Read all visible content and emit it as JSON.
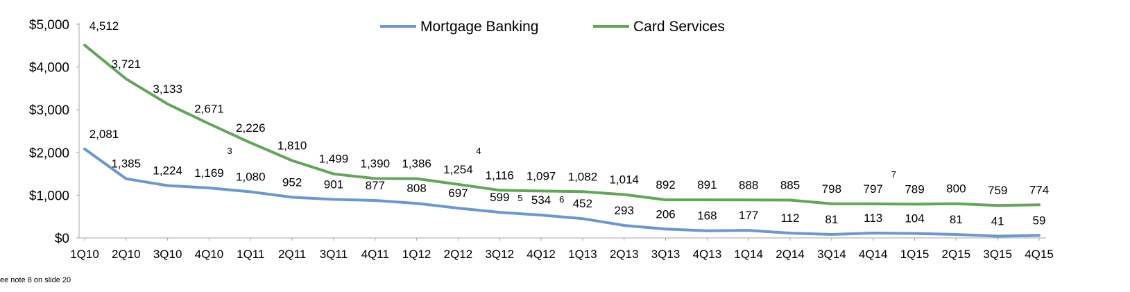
{
  "chart_data": {
    "type": "line",
    "title": "",
    "xlabel": "",
    "ylabel": "",
    "ylim": [
      0,
      5000
    ],
    "y_ticks": [
      "$0",
      "$1,000",
      "$2,000",
      "$3,000",
      "$4,000",
      "$5,000"
    ],
    "grid": false,
    "legend_position": "top-center",
    "categories": [
      "1Q10",
      "2Q10",
      "3Q10",
      "4Q10",
      "1Q11",
      "2Q11",
      "3Q11",
      "4Q11",
      "1Q12",
      "2Q12",
      "3Q12",
      "4Q12",
      "1Q13",
      "2Q13",
      "3Q13",
      "4Q13",
      "1Q14",
      "2Q14",
      "3Q14",
      "4Q14",
      "1Q15",
      "2Q15",
      "3Q15",
      "4Q15"
    ],
    "series": [
      {
        "name": "Mortgage Banking",
        "color": "#6c98cf",
        "values": [
          2081,
          1385,
          1224,
          1169,
          1080,
          952,
          901,
          877,
          808,
          697,
          599,
          534,
          452,
          293,
          206,
          168,
          177,
          112,
          81,
          113,
          104,
          81,
          41,
          59
        ],
        "labels": [
          "2,081",
          "1,385",
          "1,224",
          "1,169",
          "1,080",
          "952",
          "901",
          "877",
          "808",
          "697",
          "599",
          "534",
          "452",
          "293",
          "206",
          "168",
          "177",
          "112",
          "81",
          "113",
          "104",
          "81",
          "41",
          "59"
        ]
      },
      {
        "name": "Card Services",
        "color": "#63a65a",
        "values": [
          4512,
          3721,
          3133,
          2671,
          2226,
          1810,
          1499,
          1390,
          1386,
          1254,
          1116,
          1097,
          1082,
          1014,
          892,
          891,
          888,
          885,
          798,
          797,
          789,
          800,
          759,
          774
        ],
        "labels": [
          "4,512",
          "3,721",
          "3,133",
          "2,671",
          "2,226",
          "1,810",
          "1,499",
          "1,390",
          "1,386",
          "1,254",
          "1,116",
          "1,097",
          "1,082",
          "1,014",
          "892",
          "891",
          "888",
          "885",
          "798",
          "797",
          "789",
          "800",
          "759",
          "774"
        ]
      }
    ],
    "annotations": [
      {
        "text": "3",
        "index": 3
      },
      {
        "text": "4",
        "index": 9
      },
      {
        "text": "5",
        "index": 10
      },
      {
        "text": "6",
        "index": 11
      },
      {
        "text": "7",
        "index": 19
      }
    ]
  },
  "footnote": "ee note 8 on slide 20"
}
